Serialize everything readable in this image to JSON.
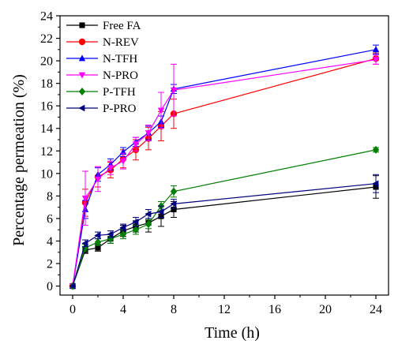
{
  "chart_data": {
    "type": "line",
    "title": "",
    "xlabel": "Time (h)",
    "ylabel": "Percentage permeation (%)",
    "xlim": [
      -1,
      25
    ],
    "ylim": [
      -0.8,
      24
    ],
    "x_ticks": [
      0,
      4,
      8,
      12,
      16,
      20,
      24
    ],
    "y_ticks": [
      0,
      2,
      4,
      6,
      8,
      10,
      12,
      14,
      16,
      18,
      20,
      22,
      24
    ],
    "grid": false,
    "legend_position": "top-left",
    "x": [
      0,
      1,
      2,
      3,
      4,
      5,
      6,
      7,
      8,
      24
    ],
    "series": [
      {
        "name": "Free FA",
        "color": "#000000",
        "marker": "square",
        "values": [
          0,
          3.2,
          3.4,
          4.2,
          4.9,
          5.3,
          5.6,
          6.2,
          6.8,
          8.8
        ],
        "errors": [
          0,
          0.3,
          0.3,
          0.4,
          0.5,
          0.5,
          0.8,
          0.9,
          0.7,
          1.0
        ]
      },
      {
        "name": "N-REV",
        "color": "#ff0000",
        "marker": "circle",
        "values": [
          0,
          7.4,
          9.7,
          10.3,
          11.3,
          12.1,
          13.1,
          14.2,
          15.3,
          20.2
        ],
        "errors": [
          0,
          1.2,
          0.9,
          0.7,
          0.8,
          0.9,
          1.0,
          1.3,
          1.3,
          0.5
        ]
      },
      {
        "name": "N-TFH",
        "color": "#0000ff",
        "marker": "triangle-up",
        "values": [
          0,
          6.8,
          9.9,
          10.8,
          11.9,
          12.8,
          13.6,
          14.6,
          17.5,
          21.0
        ],
        "errors": [
          0,
          0.8,
          0.6,
          0.5,
          0.4,
          0.4,
          0.6,
          0.5,
          0.4,
          0.4
        ]
      },
      {
        "name": "N-PRO",
        "color": "#ff00ff",
        "marker": "triangle-down",
        "values": [
          0,
          7.8,
          9.5,
          10.5,
          11.1,
          12.6,
          13.6,
          15.6,
          17.4,
          20.1
        ],
        "errors": [
          0,
          2.4,
          1.1,
          0.6,
          0.7,
          0.6,
          0.7,
          1.6,
          2.3,
          0.4
        ]
      },
      {
        "name": "P-TFH",
        "color": "#008000",
        "marker": "diamond",
        "values": [
          0,
          3.4,
          3.9,
          4.2,
          4.6,
          5.0,
          5.5,
          7.1,
          8.4,
          12.1
        ],
        "errors": [
          0,
          0.3,
          0.3,
          0.4,
          0.4,
          0.4,
          0.4,
          0.4,
          0.5,
          0.2
        ]
      },
      {
        "name": "P-PRO",
        "color": "#000080",
        "marker": "triangle-left",
        "values": [
          0,
          3.8,
          4.5,
          4.6,
          5.2,
          5.7,
          6.4,
          6.6,
          7.3,
          9.1
        ],
        "errors": [
          0,
          0.3,
          0.3,
          0.3,
          0.3,
          0.4,
          0.4,
          0.5,
          0.4,
          0.8
        ]
      }
    ]
  }
}
